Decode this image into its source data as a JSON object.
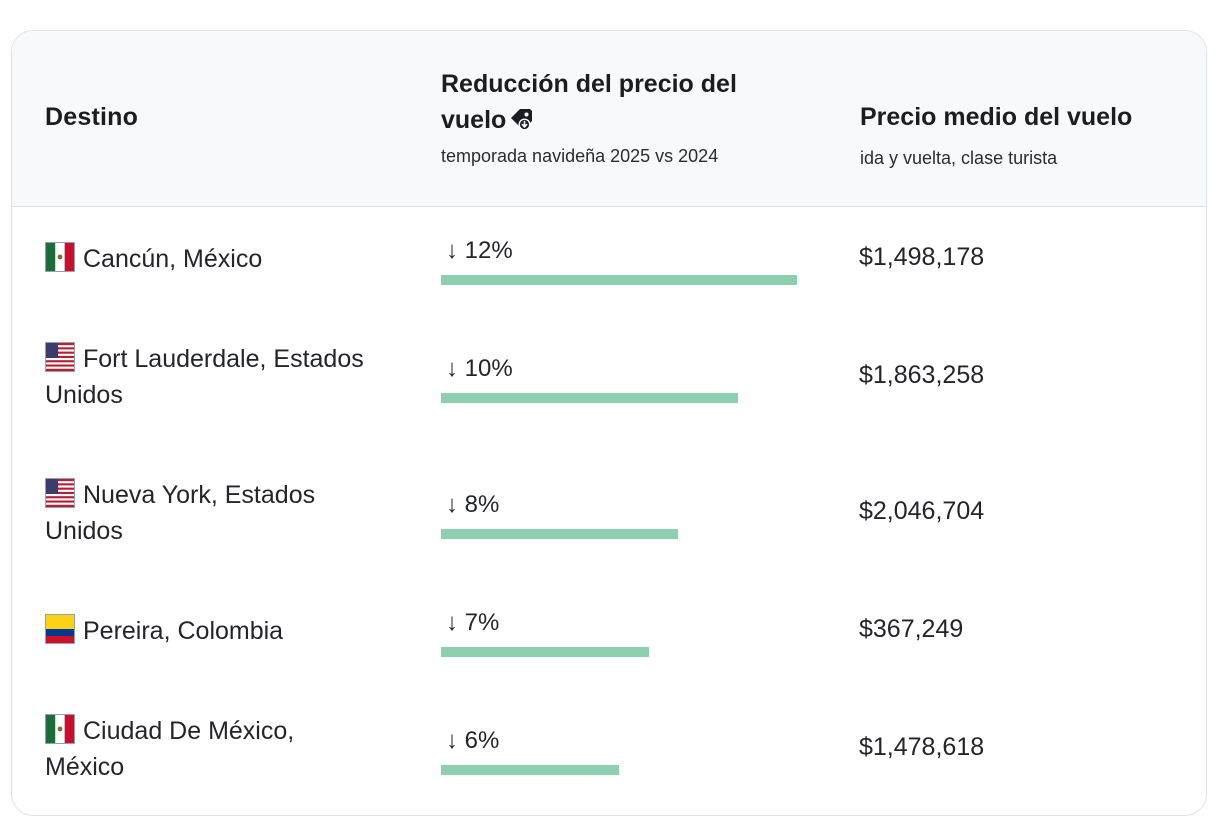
{
  "header": {
    "destino": "Destino",
    "reduccion_title": "Reducción del precio del vuelo",
    "reduccion_sub": "temporada navideña 2025 vs 2024",
    "precio_title": "Precio medio del vuelo",
    "precio_sub": "ida y vuelta, clase turista",
    "tag_icon": "price-tag-down-icon"
  },
  "colors": {
    "bar": "#8ecfb0",
    "header_bg": "#f8f9fb",
    "border": "#dfe2e7"
  },
  "rows": [
    {
      "flag": "mexico-flag-icon",
      "destination": "Cancún, México",
      "reduction": "↓ 12%",
      "reduction_value": 12,
      "price": "$1,498,178"
    },
    {
      "flag": "usa-flag-icon",
      "destination": "Fort Lauderdale, Estados Unidos",
      "reduction": "↓ 10%",
      "reduction_value": 10,
      "price": "$1,863,258"
    },
    {
      "flag": "usa-flag-icon",
      "destination": "Nueva York, Estados Unidos",
      "reduction": "↓ 8%",
      "reduction_value": 8,
      "price": "$2,046,704"
    },
    {
      "flag": "colombia-flag-icon",
      "destination": "Pereira, Colombia",
      "reduction": "↓ 7%",
      "reduction_value": 7,
      "price": "$367,249"
    },
    {
      "flag": "mexico-flag-icon",
      "destination": "Ciudad De México, México",
      "reduction": "↓ 6%",
      "reduction_value": 6,
      "price": "$1,478,618"
    }
  ]
}
